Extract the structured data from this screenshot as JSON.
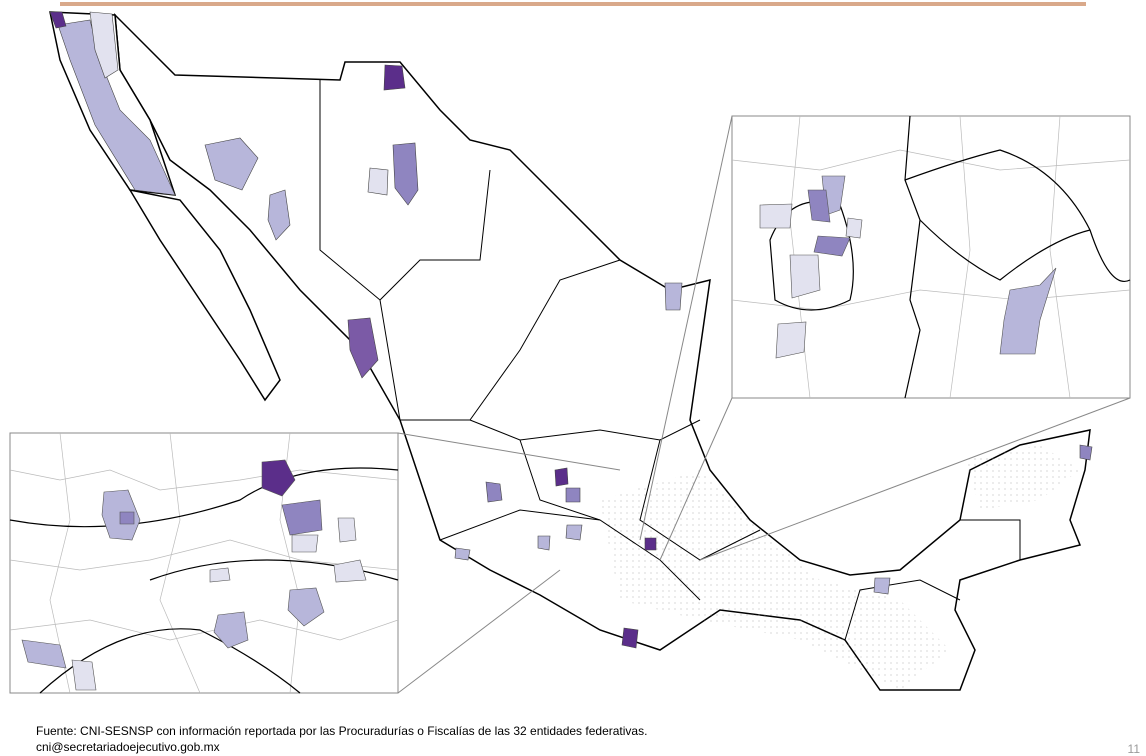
{
  "footer": {
    "source": "Fuente: CNI-SESNSP con información reportada por las Procuradurías o Fiscalías de las 32 entidades federativas.",
    "email": "cni@secretariadoejecutivo.gob.mx"
  },
  "page_number": "11"
}
